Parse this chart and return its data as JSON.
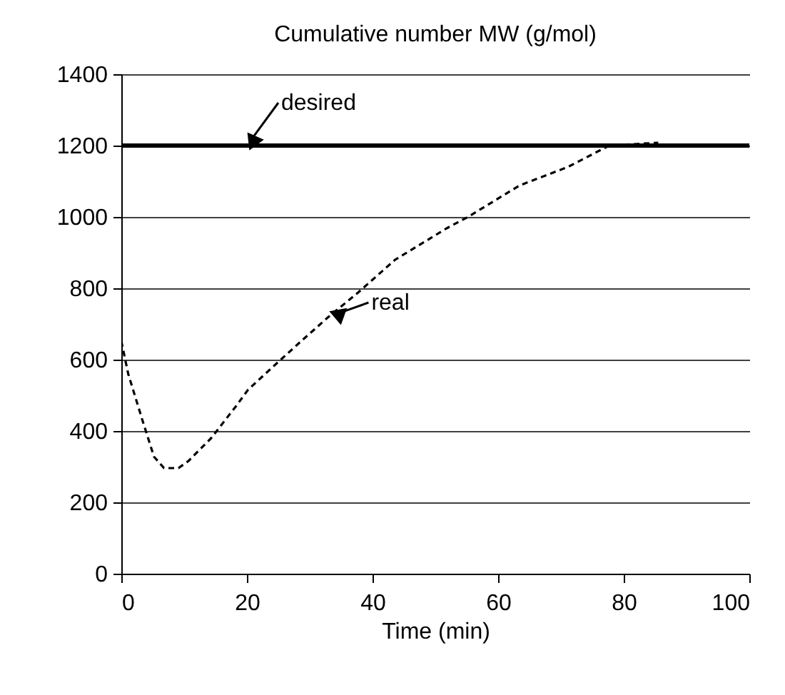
{
  "chart_data": {
    "type": "line",
    "title": "Cumulative number MW (g/mol)",
    "xlabel": "Time (min)",
    "xlim": [
      0,
      100
    ],
    "xticks": [
      0,
      20,
      40,
      60,
      80,
      100
    ],
    "ylim": [
      0,
      1400
    ],
    "yticks": [
      0,
      200,
      400,
      600,
      800,
      1000,
      1200,
      1400
    ],
    "grid": "y",
    "series": [
      {
        "color": "#000000",
        "line_style": "dashed",
        "x": [
          0,
          1.1,
          3.4,
          5.2,
          6.8,
          9.1,
          10.7,
          14.3,
          18.2,
          20.2,
          23.9,
          28.4,
          33,
          37.7,
          43.6,
          51.8,
          55.2,
          63.4,
          71.1,
          77.7,
          85.5
        ],
        "values": [
          652,
          560,
          428,
          328,
          296,
          296,
          316,
          380,
          468,
          516,
          576,
          648,
          720,
          788,
          880,
          968,
          1000,
          1088,
          1140,
          1200,
          1208
        ]
      }
    ],
    "ref_lines": [
      {
        "axis": "y",
        "value": 1200,
        "label": "desired",
        "color": "#000000",
        "line_style": "solid"
      }
    ],
    "annotations": [
      {
        "text": "real",
        "x": 33,
        "y": 720
      }
    ]
  }
}
